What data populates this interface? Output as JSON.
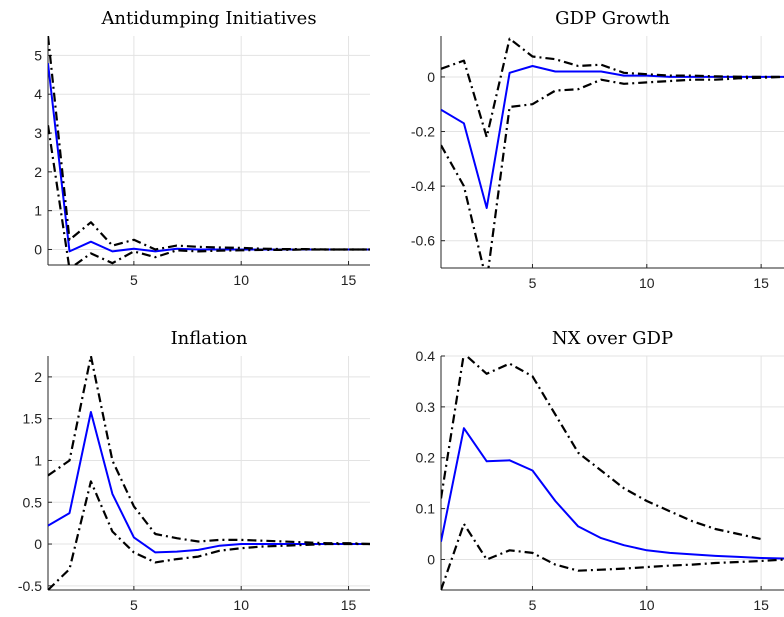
{
  "chart_data": [
    {
      "type": "line",
      "title": "Antidumping Initiatives",
      "xlim": [
        1,
        16
      ],
      "ylim": [
        -0.4,
        5.5
      ],
      "xticks": [
        5,
        10,
        15
      ],
      "yticks": [
        0,
        1,
        2,
        3,
        4,
        5
      ],
      "ytick_labels": [
        "0",
        "1",
        "2",
        "3",
        "4",
        "5"
      ],
      "grid": true,
      "series": [
        {
          "role": "estimate",
          "color": "#0000ff",
          "style": "solid",
          "x": [
            1,
            2,
            3,
            4,
            5,
            6,
            7,
            8,
            9,
            10,
            11,
            12,
            13,
            14,
            15,
            16
          ],
          "y": [
            4.8,
            -0.05,
            0.2,
            -0.05,
            0.02,
            -0.05,
            0.02,
            0.0,
            0.0,
            0.0,
            0.0,
            0.0,
            0.0,
            0.0,
            0.0,
            0.0
          ]
        },
        {
          "role": "upper",
          "color": "#000000",
          "style": "dashdot",
          "x": [
            1,
            2,
            3,
            4,
            5,
            6,
            7,
            8,
            9,
            10,
            11,
            12,
            13,
            14,
            15,
            16
          ],
          "y": [
            5.5,
            0.25,
            0.7,
            0.1,
            0.25,
            0.0,
            0.1,
            0.07,
            0.05,
            0.04,
            0.02,
            0.01,
            0.01,
            0.0,
            0.0,
            0.0
          ]
        },
        {
          "role": "lower",
          "color": "#000000",
          "style": "dashdot",
          "x": [
            1,
            2,
            3,
            4,
            5,
            6,
            7,
            8,
            9,
            10,
            11,
            12,
            13,
            14,
            15,
            16
          ],
          "y": [
            3.2,
            -0.5,
            -0.1,
            -0.35,
            -0.05,
            -0.2,
            -0.02,
            -0.05,
            -0.03,
            -0.02,
            -0.01,
            -0.01,
            0.0,
            0.0,
            0.0,
            0.0
          ]
        }
      ]
    },
    {
      "type": "line",
      "title": "GDP Growth",
      "xlim": [
        1,
        16
      ],
      "ylim": [
        -0.7,
        0.15
      ],
      "xticks": [
        5,
        10,
        15
      ],
      "yticks": [
        0,
        -0.2,
        -0.4,
        -0.6
      ],
      "ytick_labels": [
        "0",
        "-0.2",
        "-0.4",
        "-0.6"
      ],
      "grid": true,
      "series": [
        {
          "role": "estimate",
          "color": "#0000ff",
          "style": "solid",
          "x": [
            1,
            2,
            3,
            4,
            5,
            6,
            7,
            8,
            9,
            10,
            11,
            12,
            13,
            14,
            15,
            16
          ],
          "y": [
            -0.12,
            -0.17,
            -0.48,
            0.015,
            0.04,
            0.02,
            0.02,
            0.02,
            0.005,
            0.005,
            0.0,
            0.0,
            0.0,
            0.0,
            0.0,
            0.0
          ]
        },
        {
          "role": "upper",
          "color": "#000000",
          "style": "dashdot",
          "x": [
            1,
            2,
            3,
            4,
            5,
            6,
            7,
            8,
            9,
            10,
            11,
            12,
            13,
            14,
            15,
            16
          ],
          "y": [
            0.03,
            0.06,
            -0.22,
            0.14,
            0.075,
            0.065,
            0.04,
            0.045,
            0.015,
            0.01,
            0.005,
            0.005,
            0.002,
            0.001,
            0.0,
            0.0
          ]
        },
        {
          "role": "lower",
          "color": "#000000",
          "style": "dashdot",
          "x": [
            1,
            2,
            3,
            4,
            5,
            6,
            7,
            8,
            9,
            10,
            11,
            12,
            13,
            14,
            15,
            16
          ],
          "y": [
            -0.25,
            -0.4,
            -0.75,
            -0.11,
            -0.1,
            -0.05,
            -0.045,
            -0.01,
            -0.025,
            -0.02,
            -0.015,
            -0.01,
            -0.01,
            -0.005,
            -0.003,
            0.0
          ]
        }
      ]
    },
    {
      "type": "line",
      "title": "Inflation",
      "xlim": [
        1,
        16
      ],
      "ylim": [
        -0.55,
        2.25
      ],
      "xticks": [
        5,
        10,
        15
      ],
      "yticks": [
        2,
        1.5,
        1,
        0.5,
        0,
        -0.5
      ],
      "ytick_labels": [
        "2",
        "1.5",
        "1",
        "0.5",
        "0",
        "-0.5"
      ],
      "grid": true,
      "series": [
        {
          "role": "estimate",
          "color": "#0000ff",
          "style": "solid",
          "x": [
            1,
            2,
            3,
            4,
            5,
            6,
            7,
            8,
            9,
            10,
            11,
            12,
            13,
            14,
            15,
            16
          ],
          "y": [
            0.22,
            0.37,
            1.58,
            0.6,
            0.08,
            -0.1,
            -0.09,
            -0.07,
            -0.02,
            0.0,
            0.0,
            0.0,
            0.0,
            0.0,
            0.0,
            0.0
          ]
        },
        {
          "role": "upper",
          "color": "#000000",
          "style": "dashdot",
          "x": [
            1,
            2,
            3,
            4,
            5,
            6,
            7,
            8,
            9,
            10,
            11,
            12,
            13,
            14,
            15,
            16
          ],
          "y": [
            0.82,
            1.0,
            2.25,
            1.0,
            0.45,
            0.12,
            0.07,
            0.03,
            0.05,
            0.05,
            0.04,
            0.03,
            0.02,
            0.01,
            0.01,
            0.0
          ]
        },
        {
          "role": "lower",
          "color": "#000000",
          "style": "dashdot",
          "x": [
            1,
            2,
            3,
            4,
            5,
            6,
            7,
            8,
            9,
            10,
            11,
            12,
            13,
            14,
            15,
            16
          ],
          "y": [
            -0.55,
            -0.3,
            0.75,
            0.15,
            -0.1,
            -0.22,
            -0.18,
            -0.15,
            -0.08,
            -0.05,
            -0.03,
            -0.02,
            -0.01,
            0.0,
            0.0,
            0.0
          ]
        }
      ]
    },
    {
      "type": "line",
      "title": "NX over GDP",
      "xlim": [
        1,
        16
      ],
      "ylim": [
        -0.06,
        0.4
      ],
      "xticks": [
        5,
        10,
        15
      ],
      "yticks": [
        0,
        0.1,
        0.2,
        0.3,
        0.4
      ],
      "ytick_labels": [
        "0",
        "0.1",
        "0.2",
        "0.3",
        "0.4"
      ],
      "grid": true,
      "series": [
        {
          "role": "estimate",
          "color": "#0000ff",
          "style": "solid",
          "x": [
            1,
            2,
            3,
            4,
            5,
            6,
            7,
            8,
            9,
            10,
            11,
            12,
            13,
            14,
            15,
            16
          ],
          "y": [
            0.035,
            0.258,
            0.193,
            0.195,
            0.175,
            0.115,
            0.065,
            0.042,
            0.028,
            0.018,
            0.013,
            0.01,
            0.007,
            0.005,
            0.003,
            0.002
          ]
        },
        {
          "role": "upper",
          "color": "#000000",
          "style": "dashdot",
          "x": [
            1,
            2,
            3,
            4,
            5,
            6,
            7,
            8,
            9,
            10,
            11,
            12,
            13,
            14,
            15
          ],
          "y": [
            0.12,
            0.405,
            0.365,
            0.385,
            0.36,
            0.285,
            0.21,
            0.175,
            0.14,
            0.115,
            0.095,
            0.075,
            0.06,
            0.05,
            0.04
          ]
        },
        {
          "role": "lower",
          "color": "#000000",
          "style": "dashdot",
          "x": [
            1,
            2,
            3,
            4,
            5,
            6,
            7,
            8,
            9,
            10,
            11,
            12,
            13,
            14,
            15,
            16
          ],
          "y": [
            -0.06,
            0.07,
            0.0,
            0.018,
            0.013,
            -0.01,
            -0.022,
            -0.02,
            -0.018,
            -0.015,
            -0.012,
            -0.01,
            -0.007,
            -0.005,
            -0.003,
            0.0
          ]
        }
      ]
    }
  ]
}
